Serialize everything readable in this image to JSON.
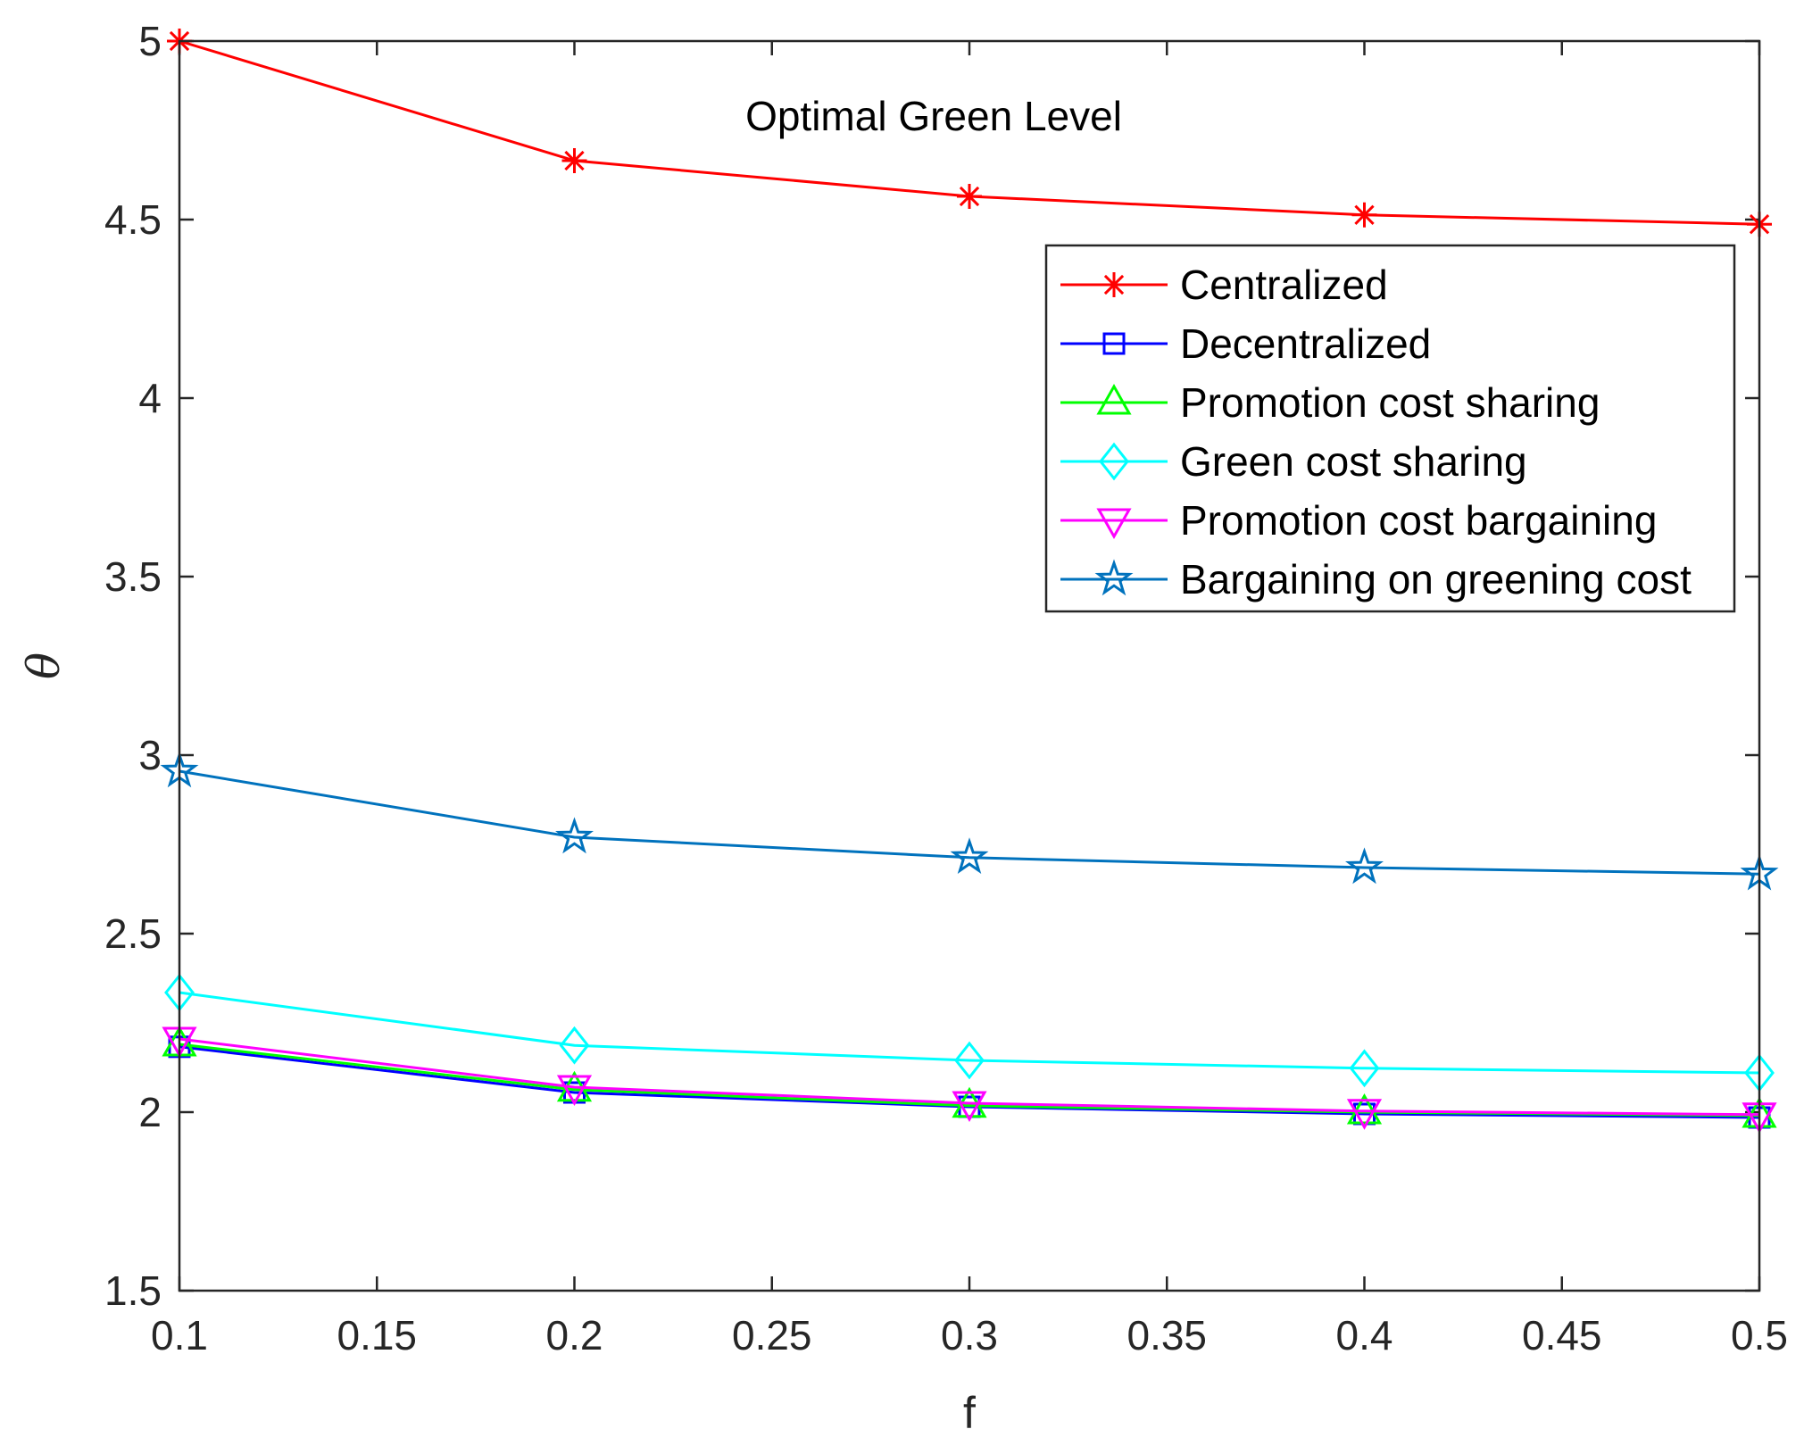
{
  "chart_data": {
    "type": "line",
    "title": "Optimal Green Level",
    "xlabel": "f",
    "ylabel": "θ",
    "xlim": [
      0.1,
      0.5
    ],
    "ylim": [
      1.5,
      5
    ],
    "xticks": [
      0.1,
      0.15,
      0.2,
      0.25,
      0.3,
      0.35,
      0.4,
      0.45,
      0.5
    ],
    "xtick_labels": [
      "0.1",
      "0.15",
      "0.2",
      "0.25",
      "0.3",
      "0.35",
      "0.4",
      "0.45",
      "0.5"
    ],
    "yticks": [
      1.5,
      2,
      2.5,
      3,
      3.5,
      4,
      4.5,
      5
    ],
    "ytick_labels": [
      "1.5",
      "2",
      "2.5",
      "3",
      "3.5",
      "4",
      "4.5",
      "5"
    ],
    "grid": false,
    "legend_position": "top-right",
    "x": [
      0.1,
      0.2,
      0.3,
      0.4,
      0.5
    ],
    "series": [
      {
        "name": "Centralized",
        "color": "#ff0000",
        "marker": "asterisk",
        "values": [
          5.0,
          4.665,
          4.565,
          4.513,
          4.487
        ]
      },
      {
        "name": "Decentralized",
        "color": "#0000ff",
        "marker": "square",
        "values": [
          2.183,
          2.055,
          2.015,
          1.995,
          1.985
        ]
      },
      {
        "name": "Promotion cost sharing",
        "color": "#00ff00",
        "marker": "triangle-up",
        "values": [
          2.19,
          2.063,
          2.018,
          2.0,
          1.99
        ]
      },
      {
        "name": "Green cost sharing",
        "color": "#00ffff",
        "marker": "diamond",
        "values": [
          2.335,
          2.187,
          2.145,
          2.123,
          2.11
        ]
      },
      {
        "name": "Promotion cost bargaining",
        "color": "#ff00ff",
        "marker": "triangle-down",
        "values": [
          2.205,
          2.07,
          2.025,
          2.003,
          1.993
        ]
      },
      {
        "name": "Bargaining on greening cost",
        "color": "#0072bd",
        "marker": "pentagram",
        "values": [
          2.955,
          2.77,
          2.713,
          2.685,
          2.667
        ]
      }
    ]
  }
}
